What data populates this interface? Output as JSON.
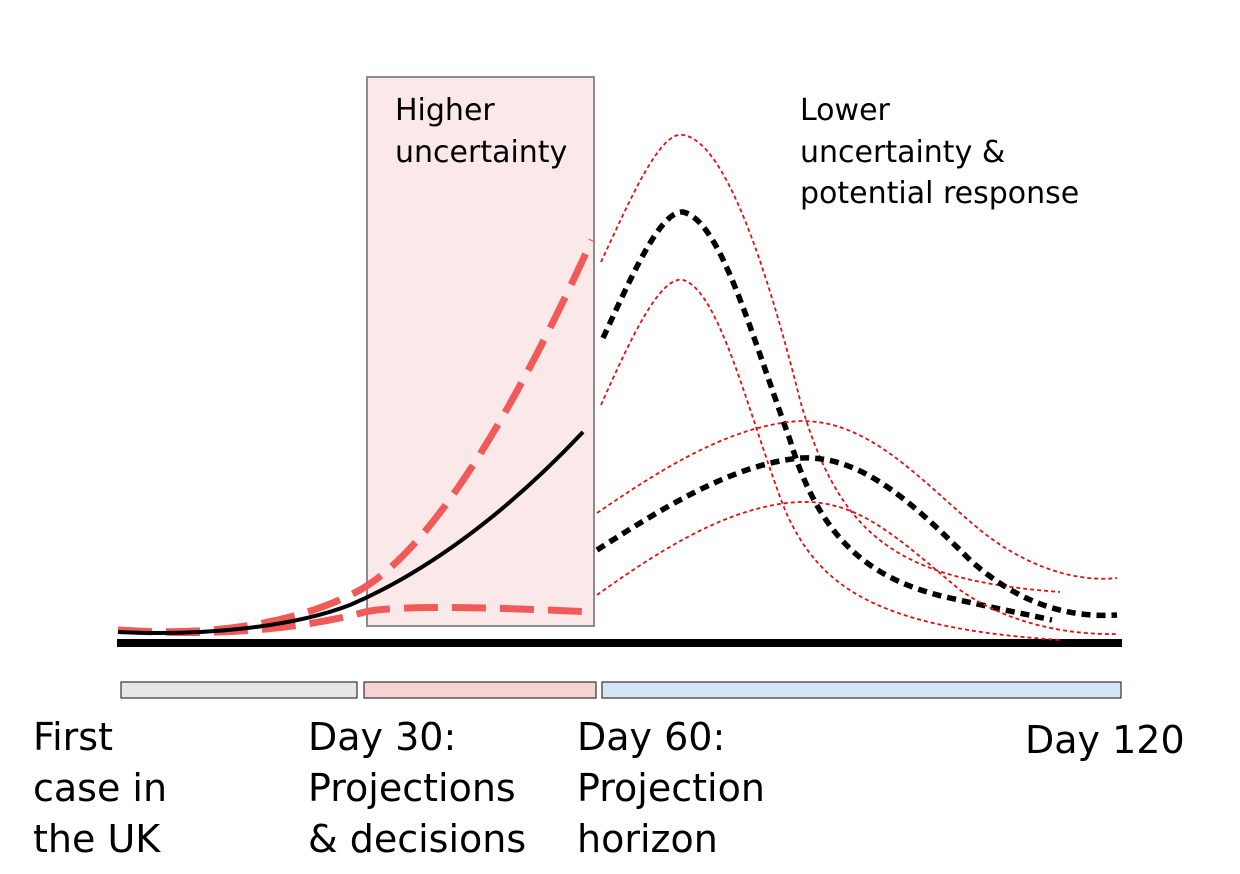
{
  "annotations": {
    "higher_uncertainty": [
      "Higher",
      "uncertainty"
    ],
    "lower_uncertainty": [
      "Lower",
      "uncertainty &",
      "potential response"
    ]
  },
  "timeline": {
    "first_case": [
      "First",
      "case in",
      "the UK"
    ],
    "day30": [
      "Day 30:",
      "Projections",
      "& decisions"
    ],
    "day60": [
      "Day 60:",
      "Projection",
      "horizon"
    ],
    "day120": "Day 120"
  },
  "colors": {
    "uncertainty_red": "#f25a5a",
    "band_red": "#e01010",
    "projection_box_fill": "#fbe9ea",
    "phase1_bar": "#e6e6e6",
    "phase2_bar": "#f6d3d3",
    "phase3_bar": "#d6e4f8"
  }
}
